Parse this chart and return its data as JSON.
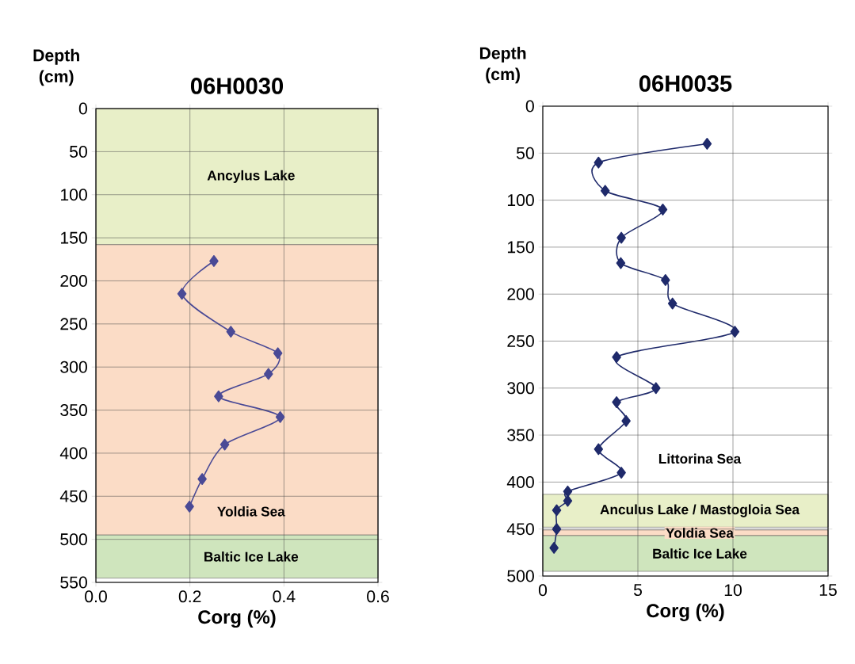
{
  "chart_data": [
    {
      "type": "line",
      "title": "06H0030",
      "xlabel": "Corg (%)",
      "ylabel": "Depth (cm)",
      "grid": true,
      "marker": "diamond",
      "line_style": "solid",
      "xlim": [
        0,
        0.6
      ],
      "xticks": [
        {
          "value": 0,
          "label": "0.0"
        },
        0.2,
        0.4,
        0.6
      ],
      "ylim": [
        550,
        0
      ],
      "yticks": [
        0,
        50,
        100,
        150,
        200,
        250,
        300,
        350,
        400,
        450,
        500,
        550
      ],
      "series": [
        {
          "color": "#4a4a96",
          "x": [
            0.251,
            0.183,
            0.287,
            0.387,
            0.367,
            0.261,
            0.392,
            0.274,
            0.226,
            0.199
          ],
          "values": [
            177,
            215,
            259,
            284,
            308,
            334,
            358,
            390,
            430,
            462
          ]
        }
      ],
      "bands": [
        {
          "axis": "y",
          "from": 0,
          "to": 158,
          "label": "Ancylus Lake",
          "color": "#e8efc8"
        },
        {
          "axis": "y",
          "from": 158,
          "to": 495,
          "label": "Yoldia Sea",
          "color": "#fbdcc6"
        },
        {
          "axis": "y",
          "from": 495,
          "to": 545,
          "label": "Baltic Ice Lake",
          "color": "#cfe5bd"
        }
      ]
    },
    {
      "type": "line",
      "title": "06H0035",
      "xlabel": "Corg (%)",
      "ylabel": "Depth (cm)",
      "grid": true,
      "marker": "diamond",
      "line_style": "solid",
      "xlim": [
        0,
        15
      ],
      "xticks": [
        0,
        5,
        10,
        15
      ],
      "ylim": [
        500,
        0
      ],
      "yticks": [
        0,
        50,
        100,
        150,
        200,
        250,
        300,
        350,
        400,
        450,
        500
      ],
      "series": [
        {
          "color": "#1f2a6b",
          "x": [
            8.64,
            2.93,
            3.28,
            6.31,
            4.13,
            4.1,
            6.45,
            6.82,
            10.1,
            3.88,
            5.95,
            3.88,
            4.38,
            2.93,
            4.13,
            1.31,
            1.31,
            0.73,
            0.73,
            0.59
          ],
          "values": [
            40,
            60,
            90,
            110,
            140,
            167,
            185,
            210,
            240,
            267,
            300,
            315,
            335,
            365,
            390,
            410,
            420,
            430,
            450,
            470
          ]
        }
      ],
      "bands": [
        {
          "axis": "y",
          "from": 413,
          "to": 448,
          "label": "Anculus Lake / Mastogloia Sea",
          "color": "#e8efc8"
        },
        {
          "axis": "y",
          "from": 451,
          "to": 457,
          "label": "Yoldia Sea",
          "color": "#fbdcc6"
        },
        {
          "axis": "y",
          "from": 457,
          "to": 495,
          "label": "Baltic Ice Lake",
          "color": "#cfe5bd"
        }
      ],
      "annotations": [
        "Littorina Sea"
      ]
    }
  ]
}
